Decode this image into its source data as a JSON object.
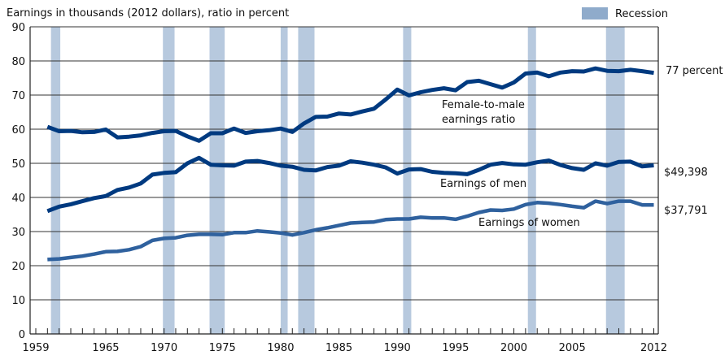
{
  "chart_data": {
    "type": "line",
    "title": "Earnings in thousands (2012 dollars), ratio in percent",
    "xlabel": "",
    "ylabel": "",
    "xlim": [
      1959,
      2012
    ],
    "ylim": [
      0,
      90
    ],
    "grid": true,
    "x_tick_labels": [
      "1959",
      "1965",
      "1970",
      "1975",
      "1980",
      "1985",
      "1990",
      "1995",
      "2000",
      "2005",
      "2012"
    ],
    "x_tick_values": [
      1959,
      1965,
      1970,
      1975,
      1980,
      1985,
      1990,
      1995,
      2000,
      2005,
      2012
    ],
    "y_tick_labels": [
      "0",
      "10",
      "20",
      "30",
      "40",
      "50",
      "60",
      "70",
      "80",
      "90"
    ],
    "y_tick_values": [
      0,
      10,
      20,
      30,
      40,
      50,
      60,
      70,
      80,
      90
    ],
    "legend": {
      "position": "top-right",
      "entries": [
        {
          "label": "Recession",
          "color": "#8fabcb"
        }
      ]
    },
    "recessions": [
      [
        1960.3,
        1961.1
      ],
      [
        1969.9,
        1970.9
      ],
      [
        1973.9,
        1975.2
      ],
      [
        1980.0,
        1980.6
      ],
      [
        1981.5,
        1982.9
      ],
      [
        1990.5,
        1991.2
      ],
      [
        2001.2,
        2001.9
      ],
      [
        2007.9,
        2009.5
      ]
    ],
    "x": [
      1960,
      1961,
      1962,
      1963,
      1964,
      1965,
      1966,
      1967,
      1968,
      1969,
      1970,
      1971,
      1972,
      1973,
      1974,
      1975,
      1976,
      1977,
      1978,
      1979,
      1980,
      1981,
      1982,
      1983,
      1984,
      1985,
      1986,
      1987,
      1988,
      1989,
      1990,
      1991,
      1992,
      1993,
      1994,
      1995,
      1996,
      1997,
      1998,
      1999,
      2000,
      2001,
      2002,
      2003,
      2004,
      2005,
      2006,
      2007,
      2008,
      2009,
      2010,
      2011,
      2012
    ],
    "series": [
      {
        "name": "Female-to-male earnings ratio",
        "label": "Female-to-male|earnings ratio",
        "end_label": "77 percent",
        "color": "#003a80",
        "values": [
          60.7,
          59.4,
          59.5,
          59.1,
          59.2,
          59.9,
          57.6,
          57.8,
          58.2,
          58.9,
          59.4,
          59.5,
          57.9,
          56.6,
          58.8,
          58.8,
          60.2,
          58.9,
          59.4,
          59.7,
          60.2,
          59.2,
          61.7,
          63.6,
          63.7,
          64.6,
          64.3,
          65.2,
          66.0,
          68.7,
          71.6,
          69.9,
          70.8,
          71.5,
          72.0,
          71.4,
          73.8,
          74.2,
          73.2,
          72.2,
          73.7,
          76.3,
          76.6,
          75.5,
          76.6,
          77.0,
          76.9,
          77.8,
          77.1,
          77.0,
          77.4,
          77.0,
          76.5
        ]
      },
      {
        "name": "Earnings of men",
        "label": "Earnings of men",
        "end_label": "$49,398",
        "color": "#003a80",
        "values": [
          36.0,
          37.3,
          38.0,
          38.9,
          39.8,
          40.4,
          42.2,
          42.9,
          44.1,
          46.7,
          47.2,
          47.4,
          50.0,
          51.6,
          49.6,
          49.4,
          49.3,
          50.5,
          50.7,
          50.1,
          49.3,
          49.0,
          48.1,
          47.9,
          48.9,
          49.3,
          50.6,
          50.2,
          49.6,
          48.8,
          47.0,
          48.2,
          48.3,
          47.5,
          47.2,
          47.1,
          46.8,
          48.1,
          49.6,
          50.1,
          49.7,
          49.6,
          50.3,
          50.8,
          49.5,
          48.6,
          48.1,
          50.0,
          49.3,
          50.4,
          50.5,
          49.1,
          49.4
        ]
      },
      {
        "name": "Earnings of women",
        "label": "Earnings of women",
        "end_label": "$37,791",
        "color": "#2f619e",
        "values": [
          21.8,
          22.0,
          22.4,
          22.8,
          23.4,
          24.1,
          24.2,
          24.7,
          25.6,
          27.4,
          28.0,
          28.2,
          28.9,
          29.2,
          29.2,
          29.1,
          29.7,
          29.7,
          30.2,
          29.9,
          29.6,
          29.0,
          29.7,
          30.5,
          31.1,
          31.8,
          32.5,
          32.7,
          32.8,
          33.5,
          33.7,
          33.7,
          34.2,
          34.0,
          34.0,
          33.6,
          34.5,
          35.6,
          36.3,
          36.2,
          36.6,
          37.9,
          38.5,
          38.3,
          37.9,
          37.4,
          37.0,
          38.9,
          38.2,
          38.9,
          38.9,
          37.8,
          37.8
        ]
      }
    ]
  },
  "labels": {
    "title": "Earnings in thousands (2012 dollars), ratio in percent",
    "legend_recession": "Recession",
    "ratio_line1": "Female-to-male",
    "ratio_line2": "earnings ratio",
    "men": "Earnings of men",
    "women": "Earnings of women",
    "ratio_end": "77 percent",
    "men_end": "$49,398",
    "women_end": "$37,791"
  },
  "colors": {
    "recession": "#b7c9de",
    "legend_swatch": "#8fabcb",
    "grid": "#333333"
  }
}
